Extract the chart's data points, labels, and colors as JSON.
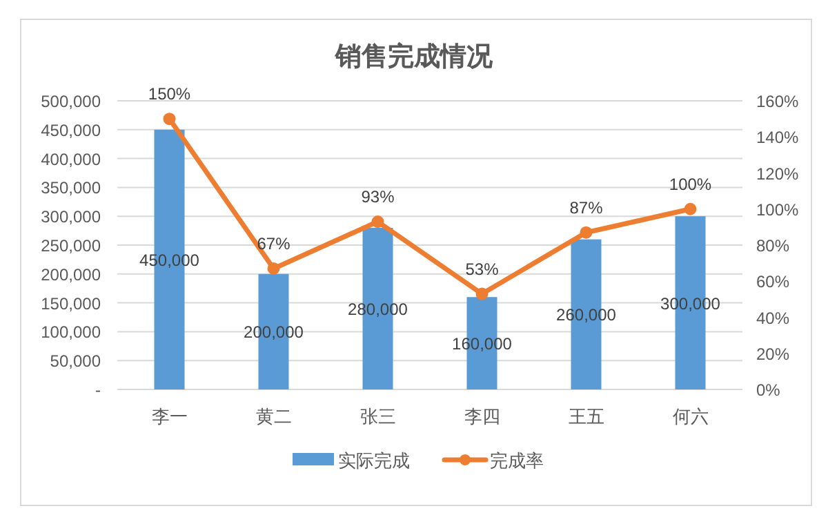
{
  "chart_data": {
    "type": "bar",
    "title": "销售完成情况",
    "categories": [
      "李一",
      "黄二",
      "张三",
      "李四",
      "王五",
      "何六"
    ],
    "series": [
      {
        "name": "实际完成",
        "color": "#5b9bd5",
        "values": [
          450000,
          200000,
          280000,
          160000,
          260000,
          300000
        ],
        "value_labels": [
          "450,000",
          "200,000",
          "280,000",
          "160,000",
          "260,000",
          "300,000"
        ]
      },
      {
        "name": "完成率",
        "type": "line",
        "axis": "y2",
        "color": "#ed7d31",
        "marker": "circle",
        "values": [
          150,
          67,
          93,
          53,
          87,
          100
        ],
        "value_labels": [
          "150%",
          "67%",
          "93%",
          "53%",
          "87%",
          "100%"
        ]
      }
    ],
    "ylim": [
      0,
      500000
    ],
    "yticks": [
      {
        "value": 0,
        "label": "-"
      },
      {
        "value": 50000,
        "label": "50,000"
      },
      {
        "value": 100000,
        "label": "100,000"
      },
      {
        "value": 150000,
        "label": "150,000"
      },
      {
        "value": 200000,
        "label": "200,000"
      },
      {
        "value": 250000,
        "label": "250,000"
      },
      {
        "value": 300000,
        "label": "300,000"
      },
      {
        "value": 350000,
        "label": "350,000"
      },
      {
        "value": 400000,
        "label": "400,000"
      },
      {
        "value": 450000,
        "label": "450,000"
      },
      {
        "value": 500000,
        "label": "500,000"
      }
    ],
    "y2lim": [
      0,
      160
    ],
    "y2ticks": [
      {
        "value": 0,
        "label": "0%"
      },
      {
        "value": 20,
        "label": "20%"
      },
      {
        "value": 40,
        "label": "40%"
      },
      {
        "value": 60,
        "label": "60%"
      },
      {
        "value": 80,
        "label": "80%"
      },
      {
        "value": 100,
        "label": "100%"
      },
      {
        "value": 120,
        "label": "120%"
      },
      {
        "value": 140,
        "label": "140%"
      },
      {
        "value": 160,
        "label": "160%"
      }
    ],
    "grid": "y",
    "legend": "bottom"
  }
}
